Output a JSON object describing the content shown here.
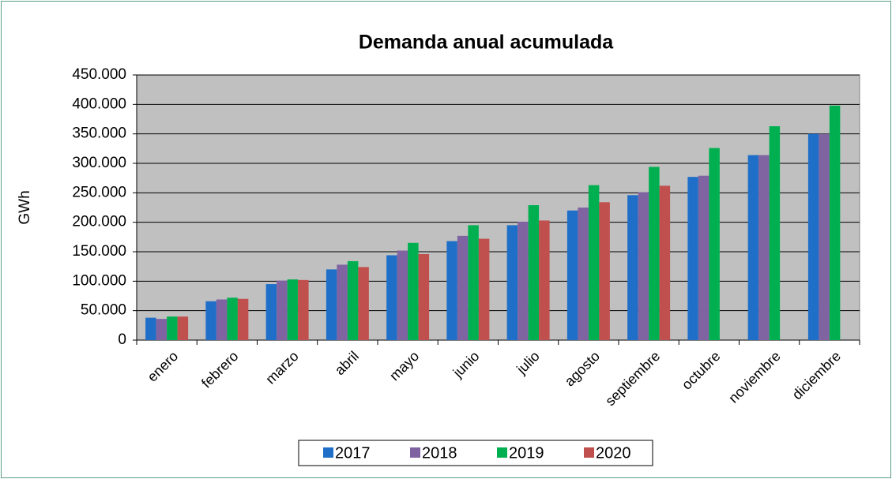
{
  "chart_data": {
    "type": "bar",
    "title": "Demanda  anual acumulada",
    "ylabel": "GWh",
    "categories": [
      "enero",
      "febrero",
      "marzo",
      "abril",
      "mayo",
      "junio",
      "julio",
      "agosto",
      "septiembre",
      "octubre",
      "noviembre",
      "diciembre"
    ],
    "series": [
      {
        "name": "2017",
        "color": "#1f6fc8",
        "values": [
          38000,
          66000,
          95000,
          120000,
          144000,
          168000,
          195000,
          220000,
          246000,
          277000,
          314000,
          350000
        ]
      },
      {
        "name": "2018",
        "color": "#8064a2",
        "values": [
          36000,
          69000,
          101000,
          128000,
          152000,
          177000,
          201000,
          225000,
          251000,
          279000,
          314000,
          350000
        ]
      },
      {
        "name": "2019",
        "color": "#00b050",
        "values": [
          40000,
          72000,
          103000,
          134000,
          165000,
          195000,
          229000,
          263000,
          294000,
          326000,
          363000,
          398000
        ]
      },
      {
        "name": "2020",
        "color": "#c0504d",
        "values": [
          40000,
          70000,
          102000,
          124000,
          146000,
          172000,
          203000,
          234000,
          262000,
          null,
          null,
          null
        ]
      }
    ],
    "ylim": [
      0,
      450000
    ],
    "yticks": [
      0,
      {
        "value": 50000,
        "label": "50.000"
      },
      {
        "value": 100000,
        "label": "100.000"
      },
      {
        "value": 150000,
        "label": "150.000"
      },
      {
        "value": 200000,
        "label": "200.000"
      },
      {
        "value": 250000,
        "label": "250.000"
      },
      {
        "value": 300000,
        "label": "300.000"
      },
      {
        "value": 350000,
        "label": "350.000"
      },
      {
        "value": 400000,
        "label": "400.000"
      },
      {
        "value": 450000,
        "label": "450.000"
      }
    ],
    "grid": true,
    "legend": "bottom"
  }
}
